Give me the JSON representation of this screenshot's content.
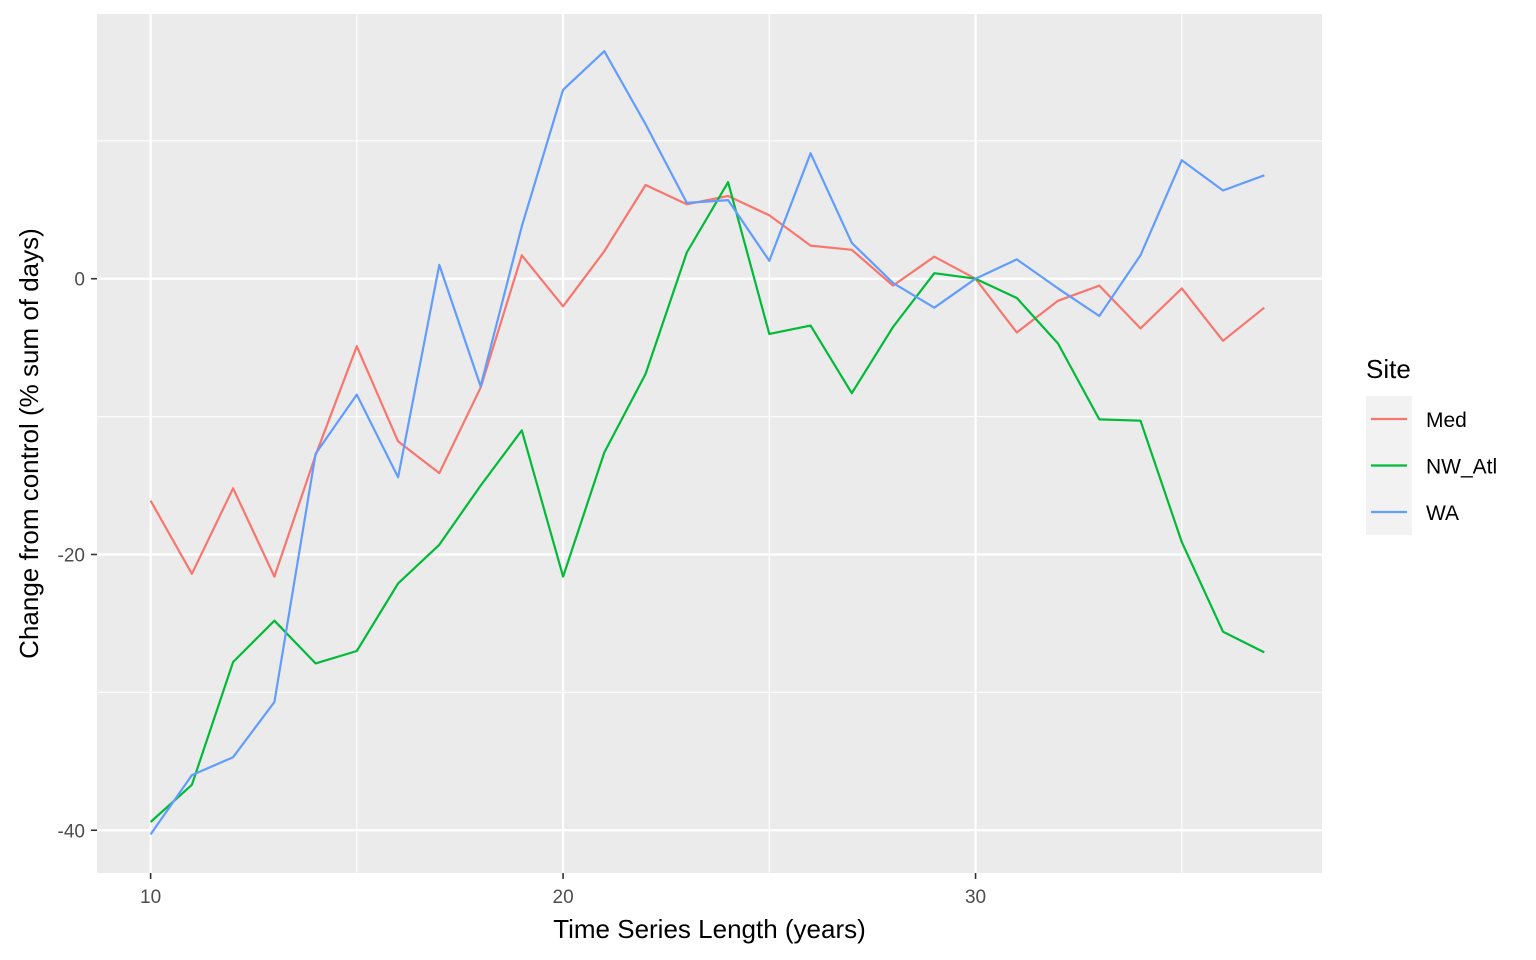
{
  "chart_data": {
    "type": "line",
    "xlabel": "Time Series Length (years)",
    "ylabel": "Change from control (% sum of days)",
    "xlim": [
      8.7,
      38.4
    ],
    "ylim": [
      -43.1,
      19.2
    ],
    "x_ticks": [
      10,
      20,
      30
    ],
    "x_tick_labels": [
      "10",
      "20",
      "30"
    ],
    "x_minor": [
      15,
      25,
      35
    ],
    "y_ticks": [
      -40,
      -20,
      0
    ],
    "y_tick_labels": [
      "-40",
      "-20",
      "0"
    ],
    "y_minor": [
      -30,
      -10,
      10
    ],
    "grid": true,
    "legend": {
      "title": "Site",
      "position": "right"
    },
    "x": [
      10,
      11,
      12,
      13,
      14,
      15,
      16,
      17,
      18,
      19,
      20,
      21,
      22,
      23,
      24,
      25,
      26,
      27,
      28,
      29,
      30,
      31,
      32,
      33,
      34,
      35,
      36,
      37
    ],
    "series": [
      {
        "name": "Med",
        "color": "#F8766D",
        "values": [
          -16.1,
          -21.4,
          -15.2,
          -21.6,
          -12.8,
          -4.9,
          -11.8,
          -14.1,
          -7.9,
          1.7,
          -2.0,
          2.0,
          6.8,
          5.4,
          6.0,
          4.6,
          2.4,
          2.1,
          -0.5,
          1.6,
          0.0,
          -3.9,
          -1.6,
          -0.5,
          -3.6,
          -0.7,
          -4.5,
          -2.1
        ]
      },
      {
        "name": "NW_Atl",
        "color": "#00BA38",
        "values": [
          -39.4,
          -36.7,
          -27.8,
          -24.8,
          -27.9,
          -27.0,
          -22.1,
          -19.3,
          -15.0,
          -11.0,
          -21.6,
          -12.6,
          -6.9,
          1.9,
          7.0,
          -4.0,
          -3.4,
          -8.3,
          -3.5,
          0.4,
          0.0,
          -1.4,
          -4.7,
          -10.2,
          -10.3,
          -19.1,
          -25.6,
          -27.1
        ]
      },
      {
        "name": "WA",
        "color": "#619CFF",
        "values": [
          -40.3,
          -36.0,
          -34.7,
          -30.7,
          -12.7,
          -8.4,
          -14.4,
          1.0,
          -7.8,
          3.8,
          13.7,
          16.5,
          11.2,
          5.5,
          5.7,
          1.3,
          9.1,
          2.6,
          -0.3,
          -2.1,
          0.0,
          1.4,
          -0.7,
          -2.7,
          1.7,
          8.6,
          6.4,
          7.5
        ]
      }
    ]
  }
}
